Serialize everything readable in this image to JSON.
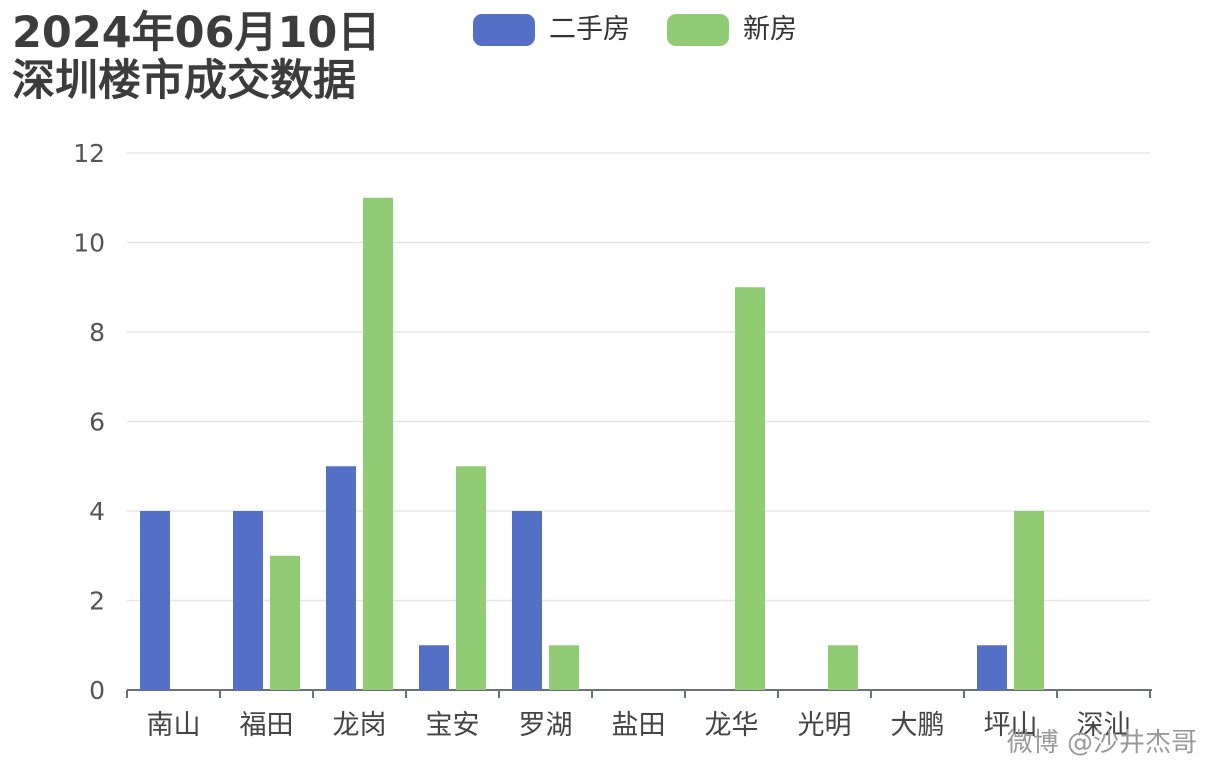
{
  "title": {
    "line1": "2024年06月10日",
    "line2": "深圳楼市成交数据"
  },
  "legend": [
    {
      "label": "二手房",
      "color": "#5470c6"
    },
    {
      "label": "新房",
      "color": "#91cc75"
    }
  ],
  "watermark": "微博 @沙井杰哥",
  "chart_data": {
    "type": "bar",
    "title": "2024年06月10日 深圳楼市成交数据",
    "categories": [
      "南山",
      "福田",
      "龙岗",
      "宝安",
      "罗湖",
      "盐田",
      "龙华",
      "光明",
      "大鹏",
      "坪山",
      "深汕"
    ],
    "series": [
      {
        "name": "二手房",
        "color": "#5470c6",
        "values": [
          4,
          4,
          5,
          1,
          4,
          0,
          0,
          0,
          0,
          1,
          0
        ]
      },
      {
        "name": "新房",
        "color": "#91cc75",
        "values": [
          0,
          3,
          11,
          5,
          1,
          0,
          9,
          1,
          0,
          4,
          0
        ]
      }
    ],
    "y_ticks": [
      0,
      2,
      4,
      6,
      8,
      10,
      12
    ],
    "ylim": [
      0,
      12
    ],
    "xlabel": "",
    "ylabel": "",
    "grid": true,
    "legend_position": "top"
  }
}
